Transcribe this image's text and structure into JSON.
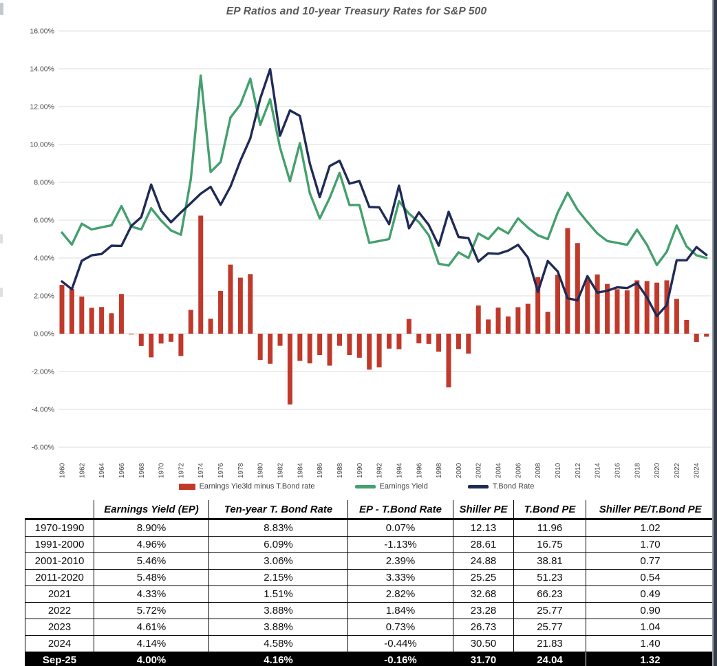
{
  "page": {
    "title": "EP Ratios and 10-year Treasury Rates for S&P 500"
  },
  "chart_data": {
    "type": "bar",
    "combo": "bar + 2 lines",
    "title": "EP Ratios and 10-year Treasury Rates for S&P 500",
    "xlabel": "",
    "ylabel": "",
    "x": [
      1960,
      1961,
      1962,
      1963,
      1964,
      1965,
      1966,
      1967,
      1968,
      1969,
      1970,
      1971,
      1972,
      1973,
      1974,
      1975,
      1976,
      1977,
      1978,
      1979,
      1980,
      1981,
      1982,
      1983,
      1984,
      1985,
      1986,
      1987,
      1988,
      1989,
      1990,
      1991,
      1992,
      1993,
      1994,
      1995,
      1996,
      1997,
      1998,
      1999,
      2000,
      2001,
      2002,
      2003,
      2004,
      2005,
      2006,
      2007,
      2008,
      2009,
      2010,
      2011,
      2012,
      2013,
      2014,
      2015,
      2016,
      2017,
      2018,
      2019,
      2020,
      2021,
      2022,
      2023,
      2024,
      2025
    ],
    "series": [
      {
        "name": "Earnings Yie3ld minus T.Bond rate",
        "type": "bar",
        "color": "#c0392b",
        "values": [
          2.58,
          2.36,
          1.96,
          1.37,
          1.41,
          1.08,
          2.1,
          -0.04,
          -0.65,
          -1.25,
          -0.52,
          -0.43,
          -1.18,
          1.26,
          6.24,
          0.79,
          2.26,
          3.65,
          2.96,
          3.15,
          -1.39,
          -1.59,
          -0.64,
          -3.74,
          -1.44,
          -1.57,
          -1.13,
          -1.69,
          -0.64,
          -1.13,
          -1.27,
          -1.9,
          -1.78,
          -0.79,
          -0.82,
          0.78,
          -0.51,
          -0.54,
          -0.95,
          -2.84,
          -0.81,
          -1.05,
          1.49,
          0.75,
          1.38,
          0.91,
          1.4,
          1.58,
          2.99,
          1.16,
          3.11,
          5.58,
          4.79,
          2.86,
          3.13,
          2.63,
          2.35,
          2.29,
          2.82,
          2.78,
          2.7,
          2.82,
          1.84,
          0.73,
          -0.44,
          -0.16
        ]
      },
      {
        "name": "Earnings Yield",
        "type": "line",
        "color": "#44a06e",
        "values": [
          5.34,
          4.71,
          5.81,
          5.51,
          5.62,
          5.73,
          6.74,
          5.66,
          5.51,
          6.63,
          5.98,
          5.46,
          5.23,
          8.16,
          13.64,
          8.55,
          9.07,
          11.43,
          12.11,
          13.48,
          11.04,
          12.39,
          9.83,
          8.06,
          10.07,
          7.42,
          6.09,
          7.17,
          8.5,
          6.8,
          6.8,
          4.8,
          4.9,
          5.0,
          7.0,
          6.35,
          5.9,
          5.2,
          3.7,
          3.6,
          4.3,
          4.0,
          5.3,
          5.0,
          5.6,
          5.3,
          6.1,
          5.6,
          5.2,
          5.0,
          6.4,
          7.45,
          6.55,
          5.9,
          5.3,
          4.9,
          4.8,
          4.7,
          5.5,
          4.7,
          3.63,
          4.33,
          5.72,
          4.61,
          4.14,
          4.0
        ]
      },
      {
        "name": "T.Bond Rate",
        "type": "line",
        "color": "#1f2a56",
        "values": [
          2.76,
          2.35,
          3.85,
          4.14,
          4.21,
          4.65,
          4.64,
          5.7,
          6.16,
          7.88,
          6.5,
          5.89,
          6.41,
          6.9,
          7.4,
          7.76,
          6.81,
          7.78,
          9.15,
          10.33,
          12.43,
          13.98,
          10.47,
          11.8,
          11.51,
          8.99,
          7.22,
          8.86,
          9.14,
          7.93,
          8.07,
          6.7,
          6.68,
          5.79,
          7.82,
          5.57,
          6.41,
          5.74,
          4.65,
          6.44,
          5.11,
          5.05,
          3.81,
          4.25,
          4.22,
          4.39,
          4.7,
          4.02,
          2.21,
          3.84,
          3.29,
          1.87,
          1.76,
          3.04,
          2.17,
          2.27,
          2.45,
          2.41,
          2.68,
          1.92,
          0.93,
          1.51,
          3.88,
          3.88,
          4.58,
          4.16
        ]
      }
    ],
    "y_axis": {
      "min": -6,
      "max": 16,
      "step": 2,
      "tick_format": "0.00%"
    },
    "x_axis": {
      "tick_start": 1960,
      "tick_end": 2024,
      "tick_step": 2,
      "label_rotation_deg": -90
    },
    "grid": "horizontal only, light gray",
    "legend_position": "bottom center"
  },
  "table": {
    "columns": [
      "",
      "Earnings Yield (EP)",
      "Ten-year T. Bond Rate",
      "EP - T.Bond Rate",
      "Shiller PE",
      "T.Bond PE",
      "Shiller PE/T.Bond PE"
    ],
    "rows": [
      [
        "1970-1990",
        "8.90%",
        "8.83%",
        "0.07%",
        "12.13",
        "11.96",
        "1.02"
      ],
      [
        "1991-2000",
        "4.96%",
        "6.09%",
        "-1.13%",
        "28.61",
        "16.75",
        "1.70"
      ],
      [
        "2001-2010",
        "5.46%",
        "3.06%",
        "2.39%",
        "24.88",
        "38.81",
        "0.77"
      ],
      [
        "2011-2020",
        "5.48%",
        "2.15%",
        "3.33%",
        "25.25",
        "51.23",
        "0.54"
      ],
      [
        "2021",
        "4.33%",
        "1.51%",
        "2.82%",
        "32.68",
        "66.23",
        "0.49"
      ],
      [
        "2022",
        "5.72%",
        "3.88%",
        "1.84%",
        "23.28",
        "25.77",
        "0.90"
      ],
      [
        "2023",
        "4.61%",
        "3.88%",
        "0.73%",
        "26.73",
        "25.77",
        "1.04"
      ],
      [
        "2024",
        "4.14%",
        "4.58%",
        "-0.44%",
        "30.50",
        "21.83",
        "1.40"
      ],
      [
        "Sep-25",
        "4.00%",
        "4.16%",
        "-0.16%",
        "31.70",
        "24.04",
        "1.32"
      ]
    ],
    "highlighted_row": "Sep-25"
  }
}
